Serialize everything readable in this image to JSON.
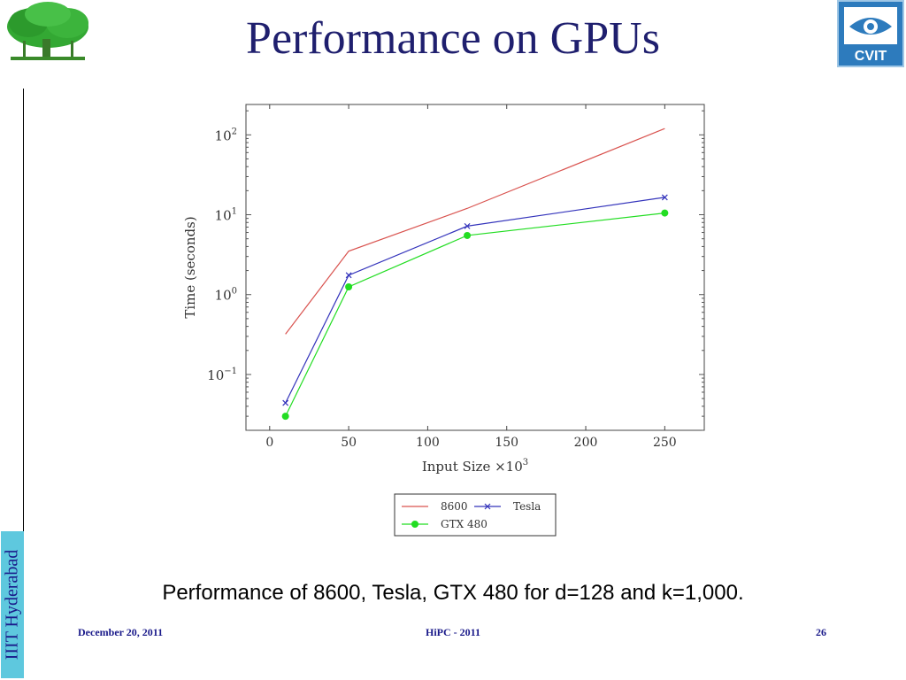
{
  "slide": {
    "title": "Performance on GPUs",
    "caption": "Performance of 8600, Tesla, GTX 480 for d=128 and k=1,000.",
    "side_label": "IIIT Hyderabad",
    "footer": {
      "date": "December 20, 2011",
      "event": "HiPC - 2011",
      "page": "26"
    },
    "logos": {
      "left": "tree-logo",
      "right": "cvit-logo",
      "right_text": "CVIT"
    }
  },
  "chart_data": {
    "type": "line",
    "title": "",
    "xlabel": "Input Size ×10",
    "xlabel_exponent": "3",
    "ylabel": "Time (seconds)",
    "y_scale": "log",
    "xlim": [
      -15,
      275
    ],
    "ylim": [
      0.02,
      240
    ],
    "x_ticks": [
      0,
      50,
      100,
      150,
      200,
      250
    ],
    "y_ticks": [
      {
        "value": 0.1,
        "base": "10",
        "exp": "−1"
      },
      {
        "value": 1,
        "base": "10",
        "exp": "0"
      },
      {
        "value": 10,
        "base": "10",
        "exp": "1"
      },
      {
        "value": 100,
        "base": "10",
        "exp": "2"
      }
    ],
    "grid": false,
    "legend_position": "bottom",
    "series": [
      {
        "name": "8600",
        "color": "#d9534f",
        "marker": "none",
        "x": [
          10,
          50,
          125,
          250
        ],
        "y": [
          0.32,
          3.5,
          12,
          120
        ]
      },
      {
        "name": "Tesla",
        "color": "#3333bb",
        "marker": "x",
        "x": [
          10,
          50,
          125,
          250
        ],
        "y": [
          0.044,
          1.75,
          7.2,
          16.5
        ]
      },
      {
        "name": "GTX 480",
        "color": "#22dd22",
        "marker": "circle",
        "x": [
          10,
          50,
          125,
          250
        ],
        "y": [
          0.03,
          1.25,
          5.5,
          10.5
        ]
      }
    ]
  }
}
